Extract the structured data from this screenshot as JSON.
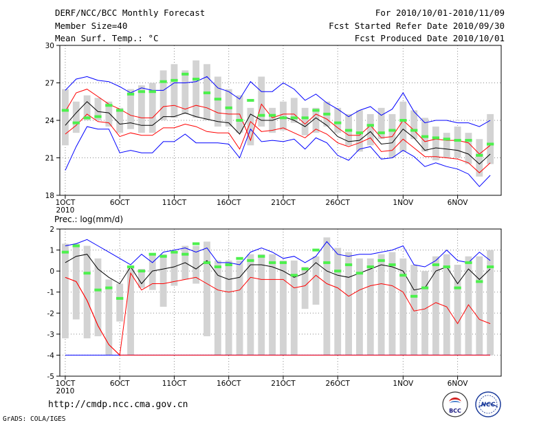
{
  "header": {
    "title": "DERF/NCC/BCC Monthly Forecast",
    "member_size": "Member Size=40",
    "variable_top": "Mean Surf. Temp.: °C",
    "period": "For 2010/10/01-2010/11/09",
    "fcst_started": "Fcst Started Refer Date 2010/09/30",
    "fcst_produced": "Fcst Produced Date 2010/10/01"
  },
  "footer": {
    "url": "http://cmdp.ncc.cma.gov.cn",
    "credit": "GrADS: COLA/IGES",
    "logo_bcc": "BCC",
    "logo_ncc": "NCC"
  },
  "colors": {
    "box": "#d3d3d3",
    "green": "#4df04d",
    "blue": "#0000ff",
    "red": "#ff0000",
    "black": "#000000",
    "grid": "#888888"
  },
  "chart_data": [
    {
      "type": "box-ensemble",
      "title": "Mean Surf. Temp.: °C",
      "ylim": [
        18,
        30
      ],
      "yticks": [
        18,
        21,
        24,
        27,
        30
      ],
      "x_ticks": [
        "1OCT",
        "6OCT",
        "11OCT",
        "16OCT",
        "21OCT",
        "26OCT",
        "1NOV",
        "6NOV"
      ],
      "x_tick_days": [
        1,
        6,
        11,
        16,
        21,
        26,
        32,
        37
      ],
      "year_label": "2010",
      "days": [
        1,
        2,
        3,
        4,
        5,
        6,
        7,
        8,
        9,
        10,
        11,
        12,
        13,
        14,
        15,
        16,
        17,
        18,
        19,
        20,
        21,
        22,
        23,
        24,
        25,
        26,
        27,
        28,
        29,
        30,
        31,
        32,
        33,
        34,
        35,
        36,
        37,
        38,
        39,
        40
      ],
      "box_low": [
        22.0,
        23.0,
        24.0,
        24.0,
        23.5,
        23.0,
        23.3,
        23.0,
        23.0,
        24.0,
        24.2,
        24.5,
        24.2,
        24.0,
        23.5,
        23.5,
        23.0,
        22.0,
        23.5,
        23.0,
        23.2,
        23.8,
        22.8,
        23.0,
        23.5,
        23.0,
        22.0,
        21.5,
        22.0,
        22.5,
        21.0,
        21.5,
        22.5,
        21.5,
        20.8,
        21.0,
        21.0,
        20.5,
        19.5,
        20.5
      ],
      "box_high": [
        26.5,
        25.5,
        26.0,
        25.8,
        25.5,
        25.0,
        26.5,
        26.8,
        27.0,
        28.0,
        28.5,
        28.0,
        28.8,
        28.5,
        27.5,
        26.5,
        26.0,
        25.0,
        27.5,
        25.0,
        25.5,
        25.8,
        25.0,
        25.0,
        25.5,
        25.0,
        24.5,
        24.8,
        24.5,
        25.0,
        24.5,
        25.5,
        24.8,
        24.2,
        23.5,
        23.0,
        23.5,
        23.0,
        22.5,
        24.5
      ],
      "green_bar": [
        24.8,
        23.8,
        24.2,
        24.3,
        25.2,
        24.8,
        26.1,
        26.3,
        26.3,
        27.1,
        27.2,
        27.7,
        27.3,
        26.2,
        25.7,
        25.0,
        24.0,
        25.6,
        24.4,
        24.4,
        24.2,
        24.2,
        24.2,
        24.8,
        24.5,
        23.8,
        23.2,
        23.0,
        23.6,
        23.0,
        23.2,
        24.0,
        23.2,
        22.7,
        22.6,
        22.5,
        22.4,
        22.4,
        21.2,
        22.1
      ],
      "series": [
        {
          "name": "max",
          "color": "#0000ff",
          "values": [
            20.0,
            21.9,
            23.5,
            23.3,
            23.3,
            21.4,
            21.6,
            21.4,
            21.4,
            22.3,
            22.3,
            22.9,
            22.2,
            22.2,
            22.2,
            22.1,
            21.0,
            23.3,
            22.3,
            22.4,
            22.3,
            22.5,
            21.7,
            22.6,
            22.2,
            21.2,
            20.8,
            21.7,
            21.9,
            20.9,
            21.0,
            21.6,
            21.1,
            20.3,
            20.6,
            20.3,
            20.1,
            19.7,
            18.7,
            19.6
          ]
        },
        {
          "name": "min",
          "color": "#0000ff",
          "values": [
            26.4,
            27.3,
            27.5,
            27.2,
            27.1,
            26.7,
            26.2,
            26.6,
            26.4,
            26.4,
            27.0,
            27.0,
            27.1,
            27.5,
            26.6,
            26.3,
            25.7,
            27.1,
            26.3,
            26.3,
            27.0,
            26.5,
            25.6,
            26.1,
            25.4,
            24.9,
            24.3,
            24.8,
            25.1,
            24.4,
            24.9,
            26.2,
            24.7,
            23.8,
            24.0,
            24.0,
            23.8,
            23.8,
            23.5,
            24.0
          ]
        },
        {
          "name": "q_high",
          "color": "#ff0000",
          "values": [
            24.7,
            26.2,
            26.5,
            25.9,
            25.3,
            24.9,
            24.4,
            24.2,
            24.2,
            25.1,
            25.2,
            24.9,
            25.2,
            25.0,
            24.6,
            24.5,
            24.5,
            22.4,
            25.3,
            24.2,
            24.5,
            24.5,
            23.7,
            24.5,
            24.1,
            23.4,
            22.8,
            22.8,
            23.6,
            22.6,
            22.7,
            24.0,
            23.2,
            22.3,
            22.5,
            22.4,
            22.4,
            22.2,
            21.3,
            22.0
          ]
        },
        {
          "name": "q_low",
          "color": "#ff0000",
          "values": [
            22.9,
            23.6,
            24.5,
            23.9,
            23.8,
            22.7,
            23.0,
            22.8,
            22.8,
            23.4,
            23.4,
            23.7,
            23.5,
            23.1,
            23.0,
            23.0,
            21.7,
            23.9,
            23.1,
            23.2,
            23.4,
            23.0,
            22.6,
            23.3,
            22.9,
            22.2,
            21.9,
            22.2,
            22.6,
            21.5,
            21.6,
            22.5,
            21.8,
            21.1,
            21.1,
            21.0,
            20.9,
            20.6,
            19.8,
            20.6
          ]
        },
        {
          "name": "ensemble_mean",
          "color": "#000000",
          "values": [
            23.6,
            24.6,
            25.5,
            24.7,
            24.6,
            23.7,
            23.8,
            23.6,
            23.6,
            24.3,
            24.3,
            24.6,
            24.3,
            24.1,
            23.9,
            23.8,
            22.9,
            24.5,
            24.0,
            24.0,
            24.3,
            24.0,
            23.5,
            24.2,
            23.6,
            22.7,
            22.3,
            22.4,
            23.1,
            22.1,
            22.2,
            23.3,
            22.6,
            21.6,
            21.8,
            21.7,
            21.6,
            21.3,
            20.5,
            21.3
          ]
        }
      ]
    },
    {
      "type": "box-ensemble",
      "title": "Prec.: log(mm/d)",
      "ylim": [
        -5,
        2
      ],
      "yticks": [
        -5,
        -4,
        -3,
        -2,
        -1,
        0,
        1,
        2
      ],
      "x_ticks": [
        "1OCT",
        "6OCT",
        "11OCT",
        "16OCT",
        "21OCT",
        "26OCT",
        "1NOV",
        "6NOV"
      ],
      "x_tick_days": [
        1,
        6,
        11,
        16,
        21,
        26,
        32,
        37
      ],
      "year_label": "2010",
      "days": [
        1,
        2,
        3,
        4,
        5,
        6,
        7,
        8,
        9,
        10,
        11,
        12,
        13,
        14,
        15,
        16,
        17,
        18,
        19,
        20,
        21,
        22,
        23,
        24,
        25,
        26,
        27,
        28,
        29,
        30,
        31,
        32,
        33,
        34,
        35,
        36,
        37,
        38,
        39,
        40
      ],
      "box_low": [
        -3.2,
        -2.3,
        -3.2,
        -3.1,
        -4.0,
        -2.4,
        -4.0,
        -0.8,
        -0.9,
        -1.7,
        -0.7,
        -0.4,
        -0.6,
        -3.1,
        -4.0,
        -4.0,
        -4.0,
        -4.0,
        -4.0,
        -4.0,
        -4.0,
        -4.0,
        -1.8,
        -1.6,
        -4.0,
        -4.0,
        -4.0,
        -4.0,
        -4.0,
        -4.0,
        -4.0,
        -4.0,
        -4.0,
        -4.0,
        -4.0,
        -4.0,
        -4.0,
        -4.0,
        -4.0,
        -4.0
      ],
      "box_high": [
        1.3,
        1.3,
        1.2,
        0.6,
        -0.4,
        -0.6,
        0.2,
        0.1,
        0.8,
        0.8,
        0.9,
        1.2,
        1.2,
        1.4,
        0.5,
        0.5,
        0.5,
        0.8,
        0.8,
        0.8,
        0.5,
        0.5,
        0.2,
        0.7,
        1.6,
        1.1,
        0.9,
        0.6,
        0.6,
        0.8,
        0.9,
        0.6,
        0.3,
        0.0,
        0.7,
        0.8,
        0.3,
        0.7,
        0.7,
        1.0
      ],
      "green_bar": [
        0.9,
        1.2,
        -0.1,
        -0.9,
        -0.8,
        -1.3,
        0.2,
        0.0,
        0.8,
        0.7,
        0.9,
        0.8,
        1.3,
        0.4,
        0.2,
        0.3,
        0.6,
        0.5,
        0.7,
        0.4,
        0.4,
        -0.2,
        0.1,
        1.0,
        0.4,
        0.0,
        0.3,
        -0.1,
        0.2,
        0.5,
        0.3,
        -0.2,
        -1.2,
        -0.8,
        0.3,
        0.2,
        -0.8,
        0.4,
        -0.5,
        0.2
      ],
      "series": [
        {
          "name": "max",
          "color": "#0000ff",
          "values": [
            -4,
            -4,
            -4,
            -4,
            -4,
            -4,
            -4,
            -4,
            -4,
            -4,
            -4,
            -4,
            -4,
            -4,
            -4,
            -4,
            -4,
            -4,
            -4,
            -4,
            -4,
            -4,
            -4,
            -4,
            -4,
            -4,
            -4,
            -4,
            -4,
            -4,
            -4,
            -4,
            -4,
            -4,
            -4,
            -4,
            -4,
            -4,
            -4,
            -4
          ]
        },
        {
          "name": "min",
          "color": "#0000ff",
          "values": [
            1.2,
            1.3,
            1.5,
            1.2,
            0.9,
            0.6,
            0.3,
            0.8,
            0.4,
            0.9,
            1.0,
            1.1,
            0.9,
            1.1,
            0.4,
            0.4,
            0.3,
            0.9,
            1.1,
            0.9,
            0.6,
            0.7,
            0.4,
            0.7,
            1.4,
            0.8,
            0.7,
            0.8,
            0.8,
            0.9,
            1.0,
            1.2,
            0.3,
            0.2,
            0.5,
            1.0,
            0.5,
            0.4,
            0.9,
            0.5
          ]
        },
        {
          "name": "q_high",
          "color": "#ff0000",
          "values": [
            -0.3,
            -0.5,
            -1.4,
            -2.6,
            -3.5,
            -4.0,
            -4.0,
            -4.0,
            -4.0,
            -4.0,
            -4.0,
            -4.0,
            -4.0,
            -4.0,
            -4.0,
            -4.0,
            -4.0,
            -4.0,
            -4.0,
            -4.0,
            -4.0,
            -4.0,
            -4.0,
            -4.0,
            -4.0,
            -4.0,
            -4.0,
            -4.0,
            -4.0,
            -4.0,
            -4.0,
            -4.0,
            -4.0,
            -4.0,
            -4.0,
            -4.0,
            -4.0,
            -4.0,
            -4.0,
            -4.0
          ]
        },
        {
          "name": "q_low",
          "color": "#ff0000",
          "values": [
            -0.3,
            -0.5,
            -1.4,
            -2.6,
            -3.5,
            -4.0,
            -0.1,
            -0.9,
            -0.6,
            -0.6,
            -0.5,
            -0.4,
            -0.3,
            -0.6,
            -0.9,
            -1.0,
            -0.9,
            -0.3,
            -0.4,
            -0.4,
            -0.4,
            -0.8,
            -0.7,
            -0.2,
            -0.6,
            -0.8,
            -1.2,
            -0.9,
            -0.7,
            -0.6,
            -0.7,
            -1.0,
            -1.9,
            -1.8,
            -1.5,
            -1.7,
            -2.5,
            -1.6,
            -2.3,
            -2.5
          ]
        },
        {
          "name": "ensemble_mean",
          "color": "#000000",
          "values": [
            0.4,
            0.7,
            0.8,
            0.1,
            -0.3,
            -0.6,
            0.2,
            -0.6,
            0.0,
            0.1,
            0.2,
            0.4,
            0.1,
            0.5,
            -0.2,
            -0.4,
            -0.3,
            0.3,
            0.3,
            0.2,
            0.0,
            -0.3,
            -0.1,
            0.4,
            0.0,
            -0.2,
            -0.3,
            -0.1,
            0.1,
            0.3,
            0.2,
            0.0,
            -0.9,
            -0.8,
            0.0,
            0.2,
            -0.6,
            0.1,
            -0.4,
            0.1
          ]
        }
      ]
    }
  ]
}
